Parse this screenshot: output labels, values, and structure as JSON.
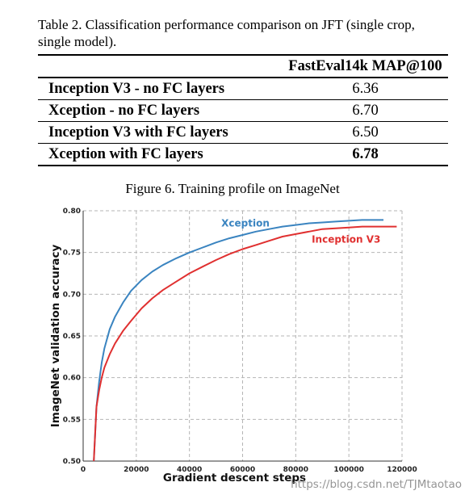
{
  "table": {
    "caption": "Table 2. Classification performance comparison on JFT (single crop, single model).",
    "header": [
      "",
      "FastEval14k MAP@100"
    ],
    "rows": [
      {
        "model": "Inception V3 - no FC layers",
        "map": "6.36",
        "bold": false
      },
      {
        "model": "Xception - no FC layers",
        "map": "6.70",
        "bold": false
      },
      {
        "model": "Inception V3 with FC layers",
        "map": "6.50",
        "bold": false
      },
      {
        "model": "Xception with FC layers",
        "map": "6.78",
        "bold": true
      }
    ]
  },
  "figure": {
    "caption": "Figure 6. Training profile on ImageNet"
  },
  "watermark": "https://blog.csdn.net/TJMtaotao",
  "chart_data": {
    "type": "line",
    "title": "",
    "xlabel": "Gradient descent steps",
    "ylabel": "ImageNet validation accuracy",
    "xlim": [
      0,
      120000
    ],
    "ylim": [
      0.5,
      0.8
    ],
    "xticks": [
      0,
      20000,
      40000,
      60000,
      80000,
      100000,
      120000
    ],
    "yticks": [
      0.5,
      0.55,
      0.6,
      0.65,
      0.7,
      0.75,
      0.8
    ],
    "xtick_labels": [
      "0",
      "20000",
      "40000",
      "60000",
      "80000",
      "100000",
      "120000"
    ],
    "ytick_labels": [
      "0.50",
      "0.55",
      "0.60",
      "0.65",
      "0.70",
      "0.75",
      "0.80"
    ],
    "grid": true,
    "series": [
      {
        "name": "Xception",
        "color": "#3a84c0",
        "x": [
          4000,
          5000,
          6000,
          7000,
          8000,
          10000,
          12000,
          15000,
          18000,
          22000,
          26000,
          30000,
          35000,
          40000,
          45000,
          50000,
          55000,
          60000,
          65000,
          70000,
          75000,
          80000,
          85000,
          90000,
          95000,
          100000,
          105000,
          110000,
          113000
        ],
        "y": [
          0.5,
          0.565,
          0.595,
          0.618,
          0.635,
          0.658,
          0.673,
          0.69,
          0.704,
          0.717,
          0.727,
          0.735,
          0.743,
          0.75,
          0.756,
          0.762,
          0.767,
          0.771,
          0.775,
          0.778,
          0.781,
          0.783,
          0.785,
          0.786,
          0.787,
          0.788,
          0.789,
          0.789,
          0.789
        ]
      },
      {
        "name": "Inception V3",
        "color": "#e03030",
        "x": [
          4000,
          5000,
          6000,
          7000,
          8000,
          10000,
          12000,
          15000,
          18000,
          22000,
          26000,
          30000,
          35000,
          40000,
          45000,
          50000,
          55000,
          60000,
          65000,
          70000,
          75000,
          80000,
          85000,
          90000,
          95000,
          100000,
          105000,
          110000,
          115000,
          118000
        ],
        "y": [
          0.5,
          0.565,
          0.585,
          0.6,
          0.612,
          0.628,
          0.641,
          0.656,
          0.668,
          0.683,
          0.695,
          0.705,
          0.715,
          0.725,
          0.733,
          0.741,
          0.748,
          0.754,
          0.759,
          0.764,
          0.769,
          0.772,
          0.775,
          0.778,
          0.779,
          0.78,
          0.781,
          0.781,
          0.781,
          0.781
        ]
      }
    ]
  }
}
